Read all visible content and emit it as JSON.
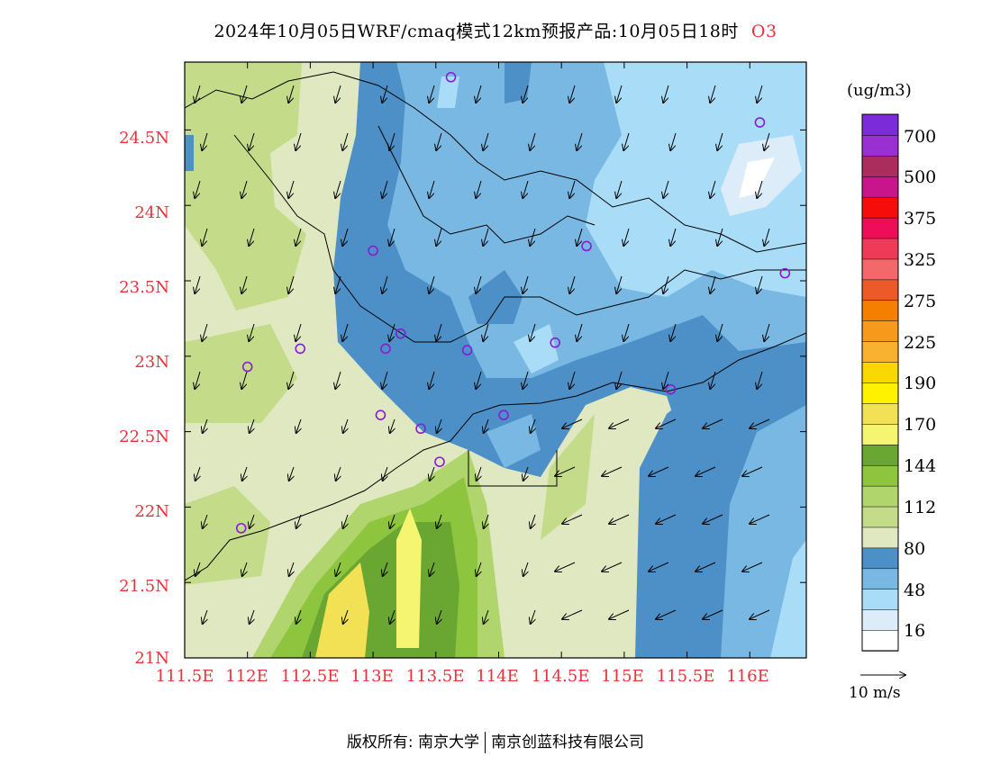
{
  "title": {
    "main": "2024年10月05日WRF/cmaq模式12km预报产品:10月05日18时",
    "species": "O3"
  },
  "axes": {
    "y_ticks": [
      "24.5N",
      "24N",
      "23.5N",
      "23N",
      "22.5N",
      "22N",
      "21.5N",
      "21N"
    ],
    "x_ticks": [
      "111.5E",
      "112E",
      "112.5E",
      "113E",
      "113.5E",
      "114E",
      "114.5E",
      "115E",
      "115.5E",
      "116E"
    ],
    "lon_range": [
      111.5,
      116.45
    ],
    "lat_range": [
      21,
      24.95
    ]
  },
  "colorbar": {
    "unit": "(ug/m3)",
    "colors": [
      "#ffffff",
      "#dcedf9",
      "#a9dcf7",
      "#78b8e2",
      "#4d8fc7",
      "#dfe8c0",
      "#c4dc89",
      "#b0d56c",
      "#8dc53f",
      "#6aa632",
      "#f5f572",
      "#f2e155",
      "#fff200",
      "#f8d800",
      "#f8b230",
      "#f59a1a",
      "#f57f00",
      "#ec5a2a",
      "#f3686a",
      "#ef3b57",
      "#ee0e57",
      "#f70c0c",
      "#c8158c",
      "#aa2d5e",
      "#9a2fd2",
      "#7b2bd8"
    ],
    "labels": [
      "16",
      "48",
      "80",
      "112",
      "144",
      "170",
      "190",
      "225",
      "275",
      "325",
      "375",
      "500",
      "700"
    ]
  },
  "monitoring_sites": [
    {
      "lon": 113.62,
      "lat": 24.85
    },
    {
      "lon": 116.08,
      "lat": 24.55
    },
    {
      "lon": 113.0,
      "lat": 23.7
    },
    {
      "lon": 114.7,
      "lat": 23.73
    },
    {
      "lon": 116.28,
      "lat": 23.55
    },
    {
      "lon": 113.22,
      "lat": 23.15
    },
    {
      "lon": 113.1,
      "lat": 23.05
    },
    {
      "lon": 113.75,
      "lat": 23.04
    },
    {
      "lon": 114.45,
      "lat": 23.09
    },
    {
      "lon": 112.42,
      "lat": 23.05
    },
    {
      "lon": 112.0,
      "lat": 22.93
    },
    {
      "lon": 115.37,
      "lat": 22.78
    },
    {
      "lon": 113.06,
      "lat": 22.61
    },
    {
      "lon": 114.04,
      "lat": 22.61
    },
    {
      "lon": 113.38,
      "lat": 22.52
    },
    {
      "lon": 113.53,
      "lat": 22.3
    },
    {
      "lon": 111.95,
      "lat": 21.86
    }
  ],
  "wind": {
    "reference_label": "10 m/s"
  },
  "footer": {
    "left": "版权所有: 南京大学",
    "right": "南京创蓝科技有限公司"
  }
}
